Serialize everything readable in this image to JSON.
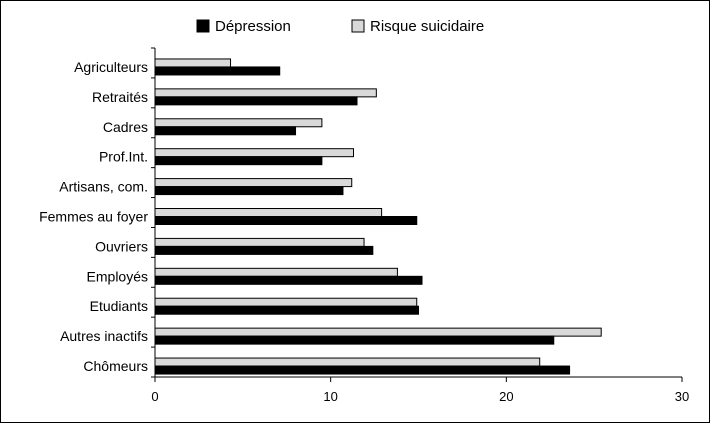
{
  "chart_data": {
    "type": "bar",
    "orientation": "horizontal",
    "categories": [
      "Agriculteurs",
      "Retraités",
      "Cadres",
      "Prof.Int.",
      "Artisans, com.",
      "Femmes au foyer",
      "Ouvriers",
      "Employés",
      "Etudiants",
      "Autres inactifs",
      "Chômeurs"
    ],
    "series": [
      {
        "name": "Dépression",
        "color": "#000000",
        "values": [
          7.1,
          11.5,
          8.0,
          9.5,
          10.7,
          14.9,
          12.4,
          15.2,
          15.0,
          22.7,
          23.6
        ]
      },
      {
        "name": "Risque suicidaire",
        "color": "#d9d9d9",
        "values": [
          4.3,
          12.6,
          9.5,
          11.3,
          11.2,
          12.9,
          11.9,
          13.8,
          14.9,
          25.4,
          21.9
        ]
      }
    ],
    "xlim": [
      0,
      30
    ],
    "xticks": [
      0,
      10,
      20,
      30
    ],
    "title": "",
    "xlabel": "",
    "ylabel": "",
    "grid": false,
    "legend_position": "top"
  }
}
